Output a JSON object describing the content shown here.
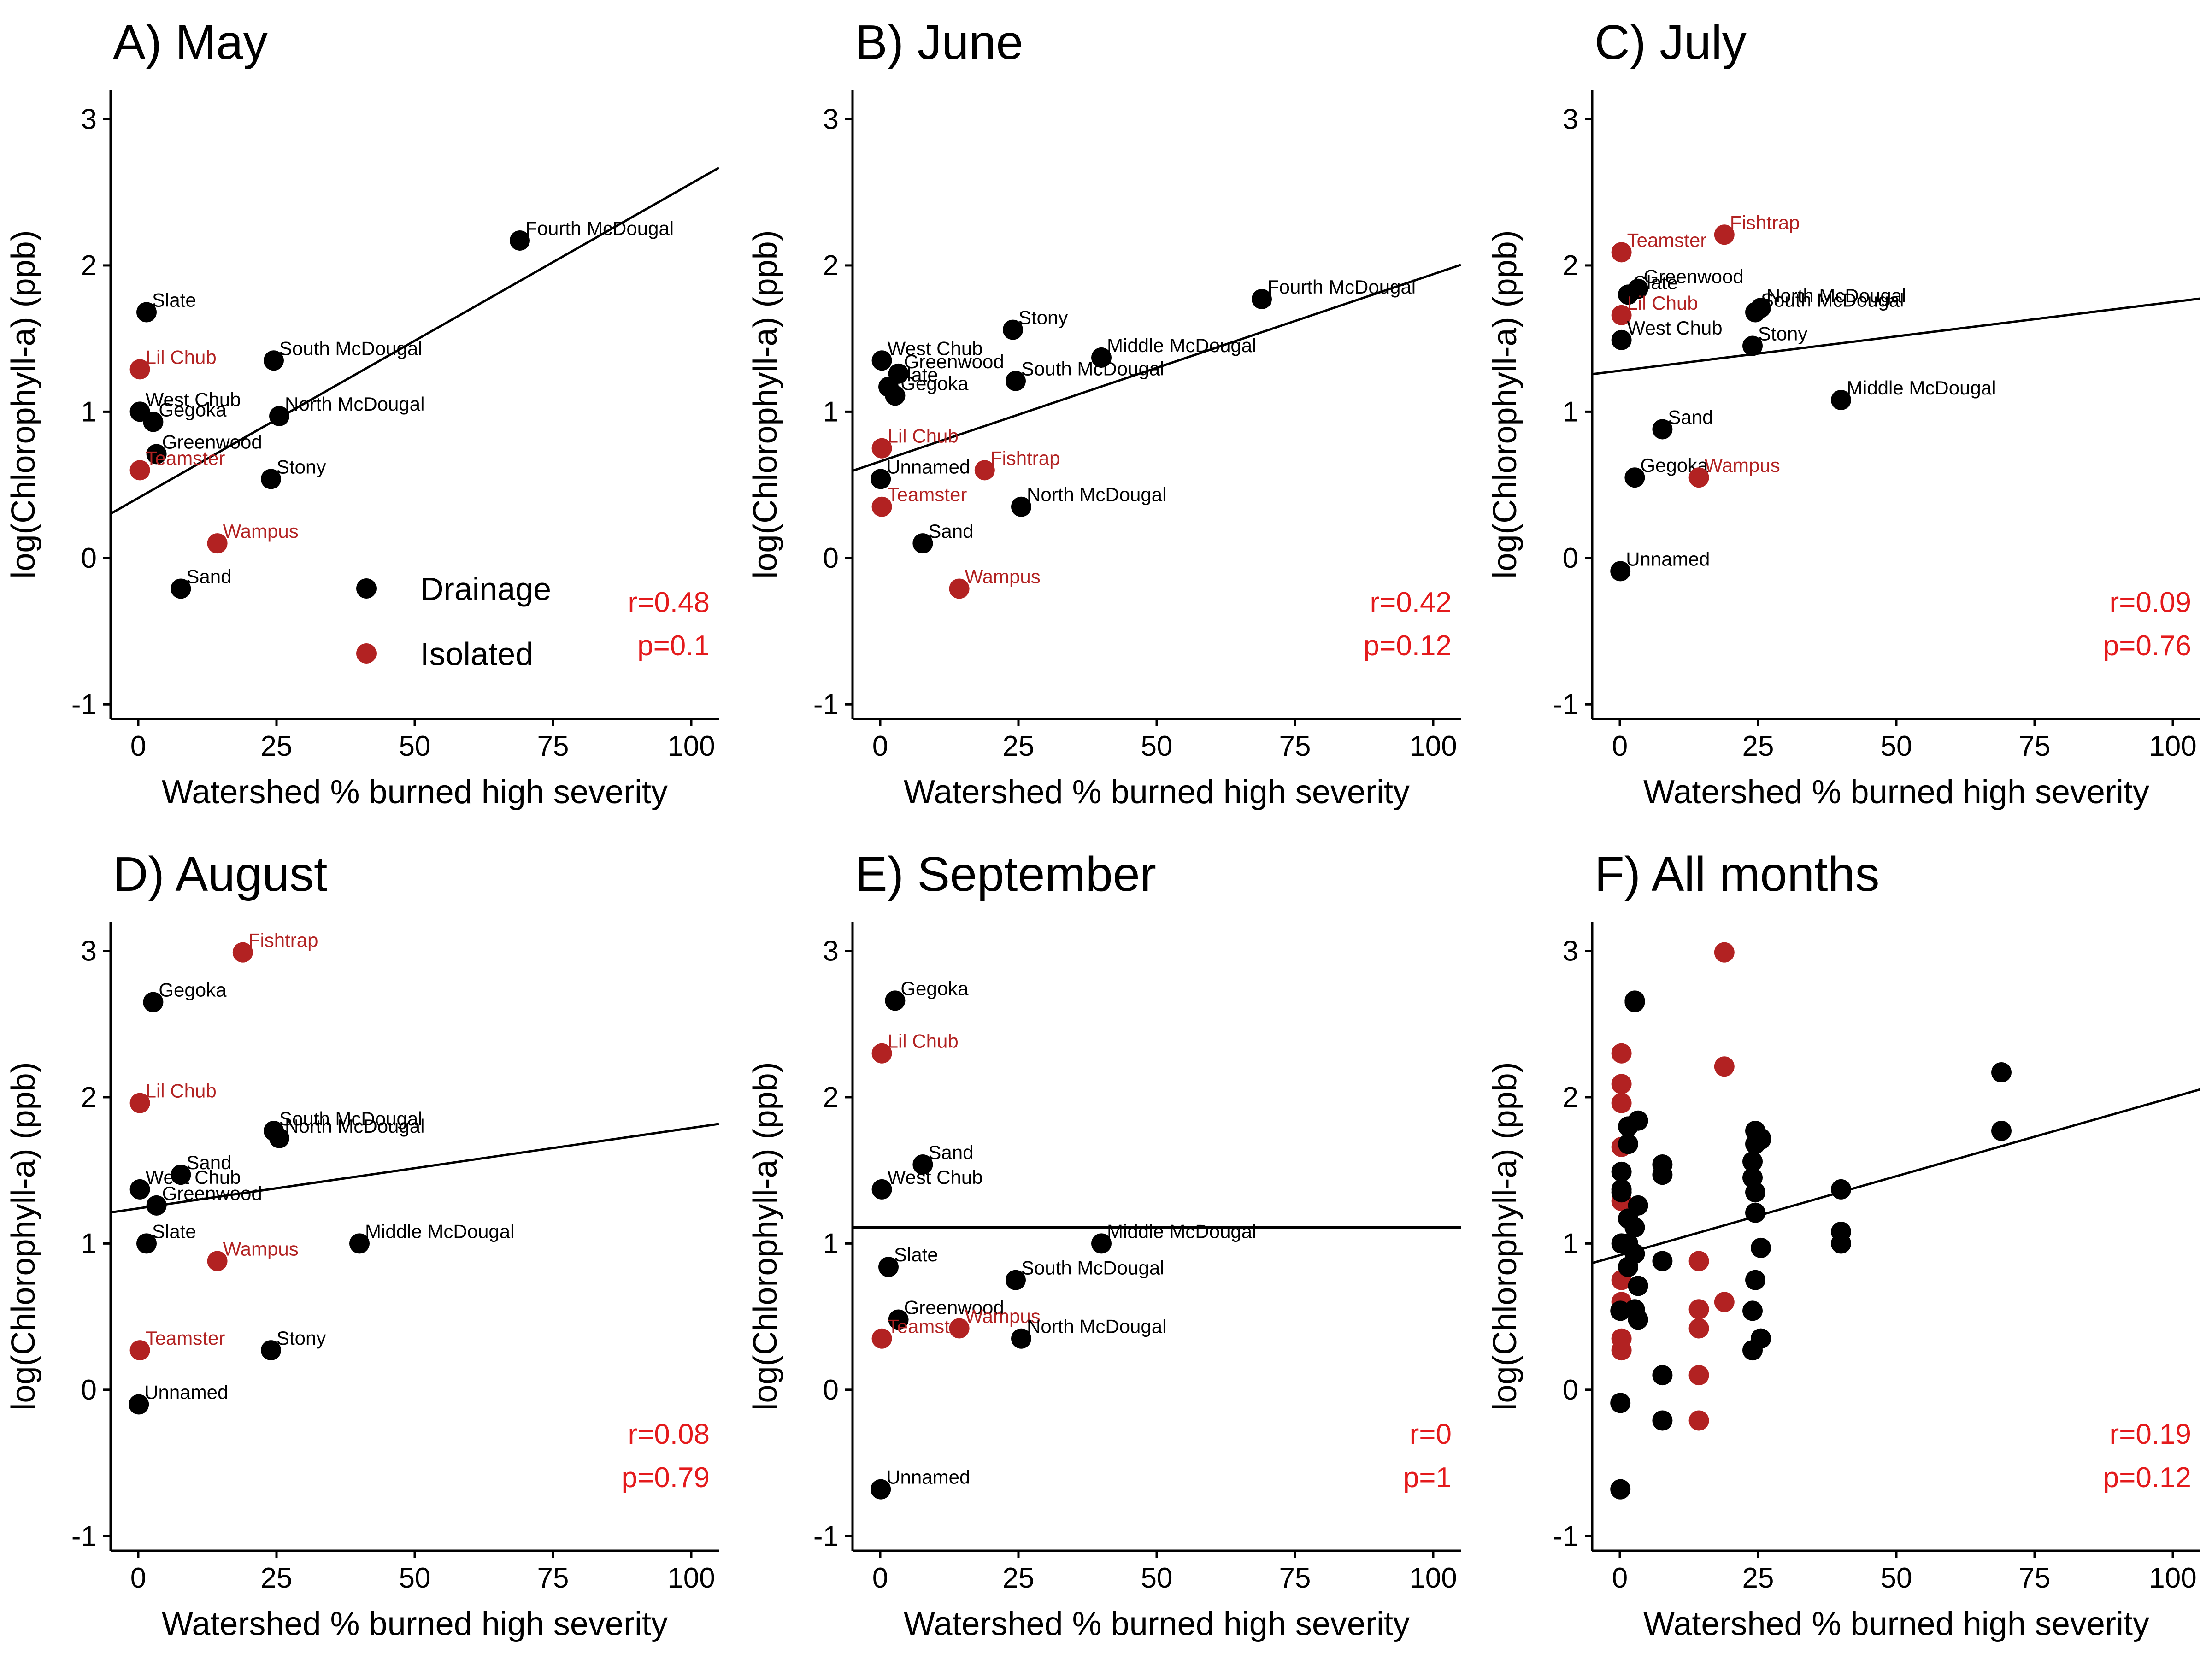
{
  "colors": {
    "drainage": "#000000",
    "isolated": "#b22222",
    "stat": "#e41a1c",
    "fit_line": "#000000"
  },
  "legend": {
    "position": "inside-bottom of panel A",
    "items": [
      {
        "label": "Drainage",
        "color": "#000000"
      },
      {
        "label": "Isolated",
        "color": "#b22222"
      }
    ]
  },
  "chart_data": [
    {
      "type": "scatter",
      "title": "A) May",
      "xlabel": "Watershed % burned high severity",
      "ylabel": "log(Chlorophyll-a) (ppb)",
      "xlim": [
        -5,
        105
      ],
      "ylim": [
        -1.1,
        3.2
      ],
      "xticks": [
        0,
        25,
        50,
        75,
        100
      ],
      "yticks": [
        -1,
        0,
        1,
        2,
        3
      ],
      "xtick_labels": [
        "0",
        "25",
        "50",
        "75",
        "100"
      ],
      "ytick_labels": [
        "-1",
        "0",
        "1",
        "2",
        "3"
      ],
      "fit": {
        "intercept": 0.41,
        "slope": 0.0215
      },
      "stats": {
        "r": "r=0.48",
        "p": "p=0.1"
      },
      "points": [
        {
          "label": "Fourth McDougal",
          "x": 69,
          "y": 2.17,
          "group": "Drainage"
        },
        {
          "label": "Slate",
          "x": 1.5,
          "y": 1.68,
          "group": "Drainage"
        },
        {
          "label": "South McDougal",
          "x": 24.5,
          "y": 1.35,
          "group": "Drainage"
        },
        {
          "label": "Lil Chub",
          "x": 0.3,
          "y": 1.29,
          "group": "Isolated"
        },
        {
          "label": "West Chub",
          "x": 0.3,
          "y": 1.0,
          "group": "Drainage"
        },
        {
          "label": "Gegoka",
          "x": 2.7,
          "y": 0.93,
          "group": "Drainage"
        },
        {
          "label": "North McDougal",
          "x": 25.5,
          "y": 0.97,
          "group": "Drainage"
        },
        {
          "label": "Greenwood",
          "x": 3.3,
          "y": 0.71,
          "group": "Drainage"
        },
        {
          "label": "Teamster",
          "x": 0.3,
          "y": 0.6,
          "group": "Isolated"
        },
        {
          "label": "Stony",
          "x": 24,
          "y": 0.54,
          "group": "Drainage"
        },
        {
          "label": "Wampus",
          "x": 14.3,
          "y": 0.1,
          "group": "Isolated"
        },
        {
          "label": "Sand",
          "x": 7.7,
          "y": -0.21,
          "group": "Drainage"
        }
      ]
    },
    {
      "type": "scatter",
      "title": "B) June",
      "xlabel": "Watershed % burned high severity",
      "ylabel": "log(Chlorophyll-a) (ppb)",
      "xlim": [
        -5,
        105
      ],
      "ylim": [
        -1.1,
        3.2
      ],
      "xticks": [
        0,
        25,
        50,
        75,
        100
      ],
      "yticks": [
        -1,
        0,
        1,
        2,
        3
      ],
      "xtick_labels": [
        "0",
        "25",
        "50",
        "75",
        "100"
      ],
      "ytick_labels": [
        "-1",
        "0",
        "1",
        "2",
        "3"
      ],
      "fit": {
        "intercept": 0.66,
        "slope": 0.0128
      },
      "stats": {
        "r": "r=0.42",
        "p": "p=0.12"
      },
      "points": [
        {
          "label": "Fourth McDougal",
          "x": 69,
          "y": 1.77,
          "group": "Drainage"
        },
        {
          "label": "Stony",
          "x": 24,
          "y": 1.56,
          "group": "Drainage"
        },
        {
          "label": "Middle McDougal",
          "x": 40,
          "y": 1.37,
          "group": "Drainage"
        },
        {
          "label": "West Chub",
          "x": 0.3,
          "y": 1.35,
          "group": "Drainage"
        },
        {
          "label": "Greenwood",
          "x": 3.3,
          "y": 1.26,
          "group": "Drainage"
        },
        {
          "label": "South McDougal",
          "x": 24.5,
          "y": 1.21,
          "group": "Drainage"
        },
        {
          "label": "Slate",
          "x": 1.5,
          "y": 1.17,
          "group": "Drainage"
        },
        {
          "label": "Gegoka",
          "x": 2.7,
          "y": 1.11,
          "group": "Drainage"
        },
        {
          "label": "Lil Chub",
          "x": 0.3,
          "y": 0.75,
          "group": "Isolated"
        },
        {
          "label": "Fishtrap",
          "x": 18.9,
          "y": 0.6,
          "group": "Isolated"
        },
        {
          "label": "Unnamed",
          "x": 0.1,
          "y": 0.54,
          "group": "Drainage"
        },
        {
          "label": "Teamster",
          "x": 0.3,
          "y": 0.35,
          "group": "Isolated"
        },
        {
          "label": "North McDougal",
          "x": 25.5,
          "y": 0.35,
          "group": "Drainage"
        },
        {
          "label": "Sand",
          "x": 7.7,
          "y": 0.1,
          "group": "Drainage"
        },
        {
          "label": "Wampus",
          "x": 14.3,
          "y": -0.21,
          "group": "Isolated"
        }
      ]
    },
    {
      "type": "scatter",
      "title": "C) July",
      "xlabel": "Watershed % burned high severity",
      "ylabel": "log(Chlorophyll-a) (ppb)",
      "xlim": [
        -5,
        105
      ],
      "ylim": [
        -1.1,
        3.2
      ],
      "xticks": [
        0,
        25,
        50,
        75,
        100
      ],
      "yticks": [
        -1,
        0,
        1,
        2,
        3
      ],
      "xtick_labels": [
        "0",
        "25",
        "50",
        "75",
        "100"
      ],
      "ytick_labels": [
        "-1",
        "0",
        "1",
        "2",
        "3"
      ],
      "fit": {
        "intercept": 1.28,
        "slope": 0.0047
      },
      "stats": {
        "r": "r=0.09",
        "p": "p=0.76"
      },
      "points": [
        {
          "label": "Fishtrap",
          "x": 18.9,
          "y": 2.21,
          "group": "Isolated"
        },
        {
          "label": "Teamster",
          "x": 0.3,
          "y": 2.09,
          "group": "Isolated"
        },
        {
          "label": "Greenwood",
          "x": 3.3,
          "y": 1.84,
          "group": "Drainage"
        },
        {
          "label": "Slate",
          "x": 1.5,
          "y": 1.8,
          "group": "Drainage"
        },
        {
          "label": "North McDougal",
          "x": 25.5,
          "y": 1.71,
          "group": "Drainage"
        },
        {
          "label": "South McDougal",
          "x": 24.5,
          "y": 1.68,
          "group": "Drainage"
        },
        {
          "label": "Lil Chub",
          "x": 0.3,
          "y": 1.66,
          "group": "Isolated"
        },
        {
          "label": "West Chub",
          "x": 0.3,
          "y": 1.49,
          "group": "Drainage"
        },
        {
          "label": "Stony",
          "x": 24,
          "y": 1.45,
          "group": "Drainage"
        },
        {
          "label": "Middle McDougal",
          "x": 40,
          "y": 1.08,
          "group": "Drainage"
        },
        {
          "label": "Sand",
          "x": 7.7,
          "y": 0.88,
          "group": "Drainage"
        },
        {
          "label": "Gegoka",
          "x": 2.7,
          "y": 0.55,
          "group": "Drainage"
        },
        {
          "label": "Wampus",
          "x": 14.3,
          "y": 0.55,
          "group": "Isolated"
        },
        {
          "label": "Unnamed",
          "x": 0.1,
          "y": -0.09,
          "group": "Drainage"
        }
      ]
    },
    {
      "type": "scatter",
      "title": "D) August",
      "xlabel": "Watershed % burned high severity",
      "ylabel": "log(Chlorophyll-a) (ppb)",
      "xlim": [
        -5,
        105
      ],
      "ylim": [
        -1.1,
        3.2
      ],
      "xticks": [
        0,
        25,
        50,
        75,
        100
      ],
      "yticks": [
        -1,
        0,
        1,
        2,
        3
      ],
      "xtick_labels": [
        "0",
        "25",
        "50",
        "75",
        "100"
      ],
      "ytick_labels": [
        "-1",
        "0",
        "1",
        "2",
        "3"
      ],
      "fit": {
        "intercept": 1.24,
        "slope": 0.0055
      },
      "stats": {
        "r": "r=0.08",
        "p": "p=0.79"
      },
      "points": [
        {
          "label": "Fishtrap",
          "x": 18.9,
          "y": 2.99,
          "group": "Isolated"
        },
        {
          "label": "Gegoka",
          "x": 2.7,
          "y": 2.65,
          "group": "Drainage"
        },
        {
          "label": "Lil Chub",
          "x": 0.3,
          "y": 1.96,
          "group": "Isolated"
        },
        {
          "label": "South McDougal",
          "x": 24.5,
          "y": 1.77,
          "group": "Drainage"
        },
        {
          "label": "North McDougal",
          "x": 25.5,
          "y": 1.72,
          "group": "Drainage"
        },
        {
          "label": "Sand",
          "x": 7.7,
          "y": 1.47,
          "group": "Drainage"
        },
        {
          "label": "West Chub",
          "x": 0.3,
          "y": 1.37,
          "group": "Drainage"
        },
        {
          "label": "Greenwood",
          "x": 3.3,
          "y": 1.26,
          "group": "Drainage"
        },
        {
          "label": "Slate",
          "x": 1.5,
          "y": 1.0,
          "group": "Drainage"
        },
        {
          "label": "Middle McDougal",
          "x": 40,
          "y": 1.0,
          "group": "Drainage"
        },
        {
          "label": "Wampus",
          "x": 14.3,
          "y": 0.88,
          "group": "Isolated"
        },
        {
          "label": "Teamster",
          "x": 0.3,
          "y": 0.27,
          "group": "Isolated"
        },
        {
          "label": "Stony",
          "x": 24,
          "y": 0.27,
          "group": "Drainage"
        },
        {
          "label": "Unnamed",
          "x": 0.1,
          "y": -0.1,
          "group": "Drainage"
        }
      ]
    },
    {
      "type": "scatter",
      "title": "E) September",
      "xlabel": "Watershed % burned high severity",
      "ylabel": "log(Chlorophyll-a) (ppb)",
      "xlim": [
        -5,
        105
      ],
      "ylim": [
        -1.1,
        3.2
      ],
      "xticks": [
        0,
        25,
        50,
        75,
        100
      ],
      "yticks": [
        -1,
        0,
        1,
        2,
        3
      ],
      "xtick_labels": [
        "0",
        "25",
        "50",
        "75",
        "100"
      ],
      "ytick_labels": [
        "-1",
        "0",
        "1",
        "2",
        "3"
      ],
      "fit": {
        "intercept": 1.11,
        "slope": 0.0
      },
      "stats": {
        "r": "r=0",
        "p": "p=1"
      },
      "points": [
        {
          "label": "Gegoka",
          "x": 2.7,
          "y": 2.66,
          "group": "Drainage"
        },
        {
          "label": "Lil Chub",
          "x": 0.3,
          "y": 2.3,
          "group": "Isolated"
        },
        {
          "label": "Sand",
          "x": 7.7,
          "y": 1.54,
          "group": "Drainage"
        },
        {
          "label": "West Chub",
          "x": 0.3,
          "y": 1.37,
          "group": "Drainage"
        },
        {
          "label": "Middle McDougal",
          "x": 40,
          "y": 1.0,
          "group": "Drainage"
        },
        {
          "label": "Slate",
          "x": 1.5,
          "y": 0.84,
          "group": "Drainage"
        },
        {
          "label": "South McDougal",
          "x": 24.5,
          "y": 0.75,
          "group": "Drainage"
        },
        {
          "label": "Greenwood",
          "x": 3.3,
          "y": 0.48,
          "group": "Drainage"
        },
        {
          "label": "Wampus",
          "x": 14.3,
          "y": 0.42,
          "group": "Isolated"
        },
        {
          "label": "Teamster",
          "x": 0.3,
          "y": 0.35,
          "group": "Isolated"
        },
        {
          "label": "North McDougal",
          "x": 25.5,
          "y": 0.35,
          "group": "Drainage"
        },
        {
          "label": "Unnamed",
          "x": 0.1,
          "y": -0.68,
          "group": "Drainage"
        }
      ]
    },
    {
      "type": "scatter",
      "title": "F) All months",
      "xlabel": "Watershed % burned high severity",
      "ylabel": "log(Chlorophyll-a) (ppb)",
      "xlim": [
        -5,
        105
      ],
      "ylim": [
        -1.1,
        3.2
      ],
      "xticks": [
        0,
        25,
        50,
        75,
        100
      ],
      "yticks": [
        -1,
        0,
        1,
        2,
        3
      ],
      "xtick_labels": [
        "0",
        "25",
        "50",
        "75",
        "100"
      ],
      "ytick_labels": [
        "-1",
        "0",
        "1",
        "2",
        "3"
      ],
      "fit": {
        "intercept": 0.92,
        "slope": 0.0108
      },
      "stats": {
        "r": "r=0.19",
        "p": "p=0.12"
      },
      "points": [
        {
          "x": 0.3,
          "y": 2.3,
          "group": "Isolated"
        },
        {
          "x": 0.3,
          "y": 2.09,
          "group": "Isolated"
        },
        {
          "x": 0.3,
          "y": 1.96,
          "group": "Isolated"
        },
        {
          "x": 0.3,
          "y": 1.66,
          "group": "Isolated"
        },
        {
          "x": 0.3,
          "y": 1.29,
          "group": "Isolated"
        },
        {
          "x": 0.3,
          "y": 0.75,
          "group": "Isolated"
        },
        {
          "x": 0.3,
          "y": 0.6,
          "group": "Isolated"
        },
        {
          "x": 0.3,
          "y": 0.35,
          "group": "Isolated"
        },
        {
          "x": 0.3,
          "y": 0.27,
          "group": "Isolated"
        },
        {
          "x": 0.3,
          "y": 1.49,
          "group": "Drainage"
        },
        {
          "x": 0.3,
          "y": 1.37,
          "group": "Drainage"
        },
        {
          "x": 0.3,
          "y": 1.35,
          "group": "Drainage"
        },
        {
          "x": 0.3,
          "y": 1.0,
          "group": "Drainage"
        },
        {
          "x": 0.1,
          "y": 0.54,
          "group": "Drainage"
        },
        {
          "x": 0.1,
          "y": -0.09,
          "group": "Drainage"
        },
        {
          "x": 0.1,
          "y": -0.68,
          "group": "Drainage"
        },
        {
          "x": 1.5,
          "y": 1.8,
          "group": "Drainage"
        },
        {
          "x": 1.5,
          "y": 1.68,
          "group": "Drainage"
        },
        {
          "x": 1.5,
          "y": 1.17,
          "group": "Drainage"
        },
        {
          "x": 1.5,
          "y": 1.0,
          "group": "Drainage"
        },
        {
          "x": 1.5,
          "y": 0.84,
          "group": "Drainage"
        },
        {
          "x": 2.7,
          "y": 2.66,
          "group": "Drainage"
        },
        {
          "x": 2.7,
          "y": 2.65,
          "group": "Drainage"
        },
        {
          "x": 2.7,
          "y": 1.11,
          "group": "Drainage"
        },
        {
          "x": 2.7,
          "y": 0.93,
          "group": "Drainage"
        },
        {
          "x": 2.7,
          "y": 0.55,
          "group": "Drainage"
        },
        {
          "x": 3.3,
          "y": 1.84,
          "group": "Drainage"
        },
        {
          "x": 3.3,
          "y": 1.26,
          "group": "Drainage"
        },
        {
          "x": 3.3,
          "y": 0.71,
          "group": "Drainage"
        },
        {
          "x": 3.3,
          "y": 0.48,
          "group": "Drainage"
        },
        {
          "x": 7.7,
          "y": 1.54,
          "group": "Drainage"
        },
        {
          "x": 7.7,
          "y": 1.47,
          "group": "Drainage"
        },
        {
          "x": 7.7,
          "y": 0.88,
          "group": "Drainage"
        },
        {
          "x": 7.7,
          "y": 0.1,
          "group": "Drainage"
        },
        {
          "x": 7.7,
          "y": -0.21,
          "group": "Drainage"
        },
        {
          "x": 14.3,
          "y": 0.88,
          "group": "Isolated"
        },
        {
          "x": 14.3,
          "y": 0.55,
          "group": "Isolated"
        },
        {
          "x": 14.3,
          "y": 0.42,
          "group": "Isolated"
        },
        {
          "x": 14.3,
          "y": 0.1,
          "group": "Isolated"
        },
        {
          "x": 14.3,
          "y": -0.21,
          "group": "Isolated"
        },
        {
          "x": 18.9,
          "y": 2.99,
          "group": "Isolated"
        },
        {
          "x": 18.9,
          "y": 2.21,
          "group": "Isolated"
        },
        {
          "x": 18.9,
          "y": 0.6,
          "group": "Isolated"
        },
        {
          "x": 24,
          "y": 1.56,
          "group": "Drainage"
        },
        {
          "x": 24,
          "y": 1.45,
          "group": "Drainage"
        },
        {
          "x": 24,
          "y": 0.54,
          "group": "Drainage"
        },
        {
          "x": 24,
          "y": 0.27,
          "group": "Drainage"
        },
        {
          "x": 24.5,
          "y": 1.77,
          "group": "Drainage"
        },
        {
          "x": 24.5,
          "y": 1.68,
          "group": "Drainage"
        },
        {
          "x": 24.5,
          "y": 1.35,
          "group": "Drainage"
        },
        {
          "x": 24.5,
          "y": 1.21,
          "group": "Drainage"
        },
        {
          "x": 24.5,
          "y": 0.75,
          "group": "Drainage"
        },
        {
          "x": 25.5,
          "y": 1.72,
          "group": "Drainage"
        },
        {
          "x": 25.5,
          "y": 1.71,
          "group": "Drainage"
        },
        {
          "x": 25.5,
          "y": 0.97,
          "group": "Drainage"
        },
        {
          "x": 25.5,
          "y": 0.35,
          "group": "Drainage"
        },
        {
          "x": 25.5,
          "y": 0.35,
          "group": "Drainage"
        },
        {
          "x": 40,
          "y": 1.37,
          "group": "Drainage"
        },
        {
          "x": 40,
          "y": 1.08,
          "group": "Drainage"
        },
        {
          "x": 40,
          "y": 1.0,
          "group": "Drainage"
        },
        {
          "x": 40,
          "y": 1.0,
          "group": "Drainage"
        },
        {
          "x": 69,
          "y": 2.17,
          "group": "Drainage"
        },
        {
          "x": 69,
          "y": 1.77,
          "group": "Drainage"
        }
      ]
    }
  ]
}
